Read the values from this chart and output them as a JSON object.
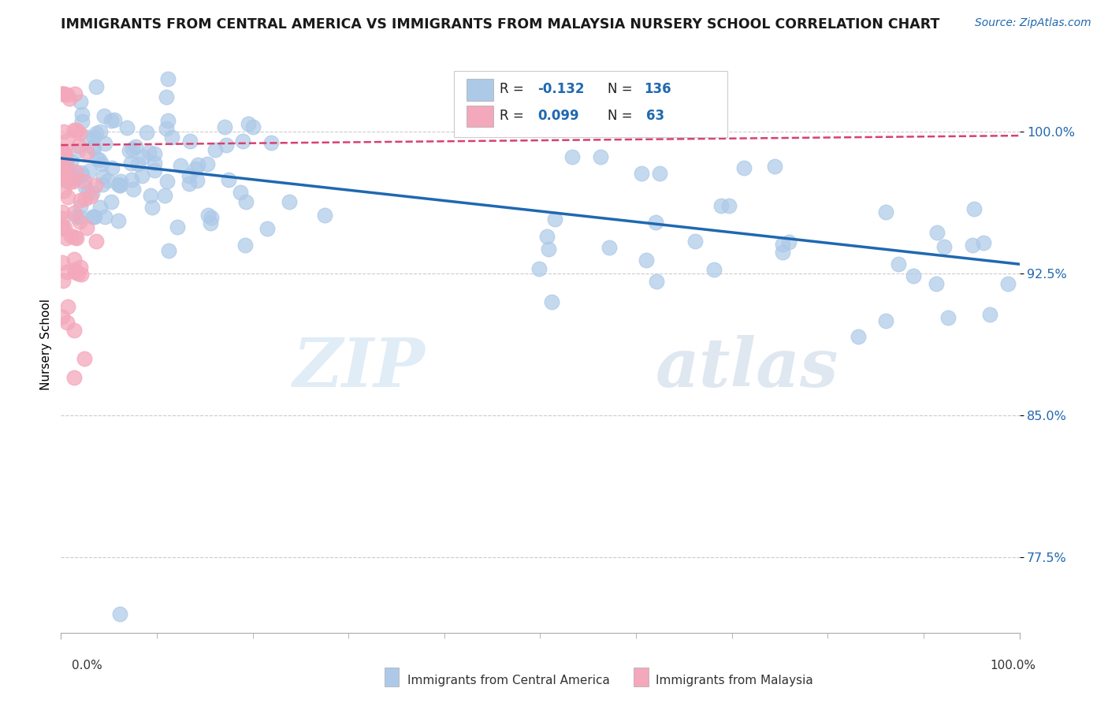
{
  "title": "IMMIGRANTS FROM CENTRAL AMERICA VS IMMIGRANTS FROM MALAYSIA NURSERY SCHOOL CORRELATION CHART",
  "source": "Source: ZipAtlas.com",
  "xlabel_blue": "Immigrants from Central America",
  "xlabel_pink": "Immigrants from Malaysia",
  "ylabel": "Nursery School",
  "xlim": [
    0.0,
    1.0
  ],
  "ylim": [
    0.735,
    1.04
  ],
  "yticks": [
    0.775,
    0.85,
    0.925,
    1.0
  ],
  "ytick_labels": [
    "77.5%",
    "85.0%",
    "92.5%",
    "100.0%"
  ],
  "xtick_labels": [
    "0.0%",
    "100.0%"
  ],
  "xticks": [
    0.0,
    1.0
  ],
  "blue_R": -0.132,
  "blue_N": 136,
  "pink_R": 0.099,
  "pink_N": 63,
  "blue_color": "#adc9e8",
  "pink_color": "#f4a8bb",
  "trendline_blue_color": "#2068b0",
  "trendline_pink_color": "#d94070",
  "title_fontsize": 12.5,
  "source_fontsize": 10,
  "watermark_zip": "ZIP",
  "watermark_atlas": "atlas",
  "background_color": "#ffffff",
  "legend_color": "#2068b0",
  "axis_label_color": "#2068b0"
}
